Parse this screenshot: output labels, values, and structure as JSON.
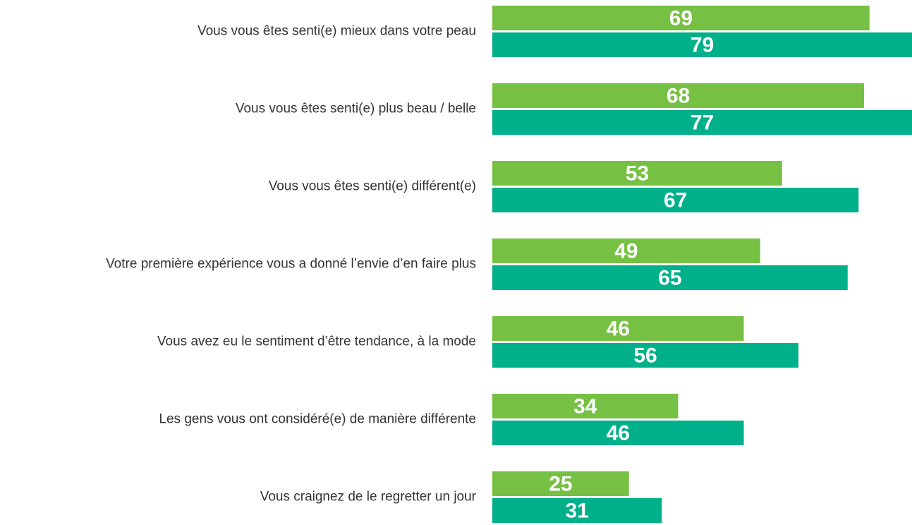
{
  "chart_data": {
    "type": "bar",
    "orientation": "horizontal",
    "categories": [
      "Vous vous êtes senti(e) mieux dans votre peau",
      "Vous vous êtes senti(e) plus beau / belle",
      "Vous vous êtes senti(e) différent(e)",
      "Votre première expérience vous a donné l’envie d’en faire plus",
      "Vous avez eu le sentiment d’être tendance, à la mode",
      "Les gens vous ont considéré(e) de manière différente",
      "Vous craignez de le regretter un jour"
    ],
    "series": [
      {
        "color": "#76c043",
        "values": [
          69,
          68,
          53,
          49,
          46,
          34,
          25
        ]
      },
      {
        "color": "#00b08a",
        "values": [
          79,
          77,
          67,
          65,
          56,
          46,
          31
        ]
      }
    ]
  }
}
